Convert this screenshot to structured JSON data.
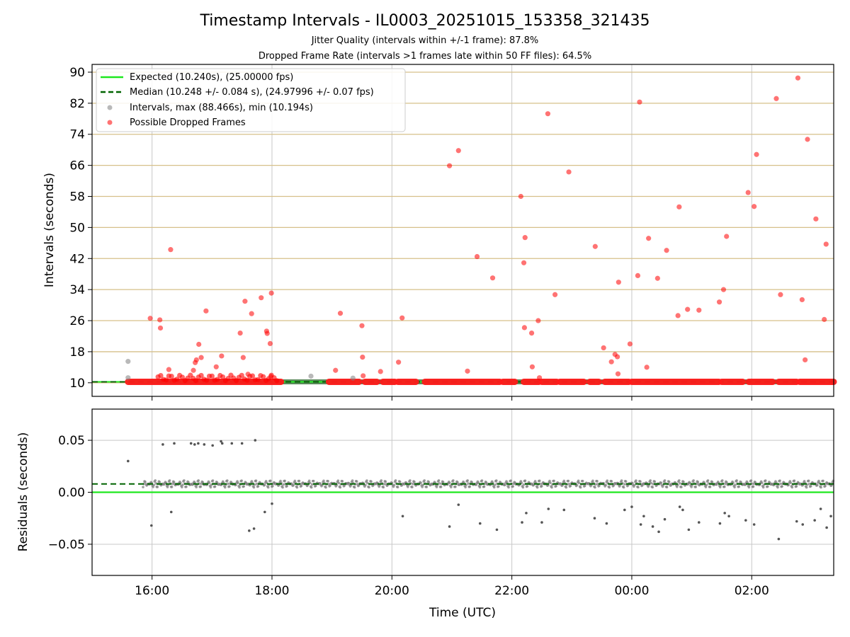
{
  "chart_data": [
    {
      "type": "scatter",
      "title": "Timestamp Intervals - IL0003_20251015_153358_321435",
      "subtitle_lines": [
        "Jitter Quality (intervals within +/-1 frame): 87.8%",
        "Dropped Frame Rate (intervals >1 frames late within 50 FF files): 64.5%"
      ],
      "xlabel": "",
      "ylabel": "Intervals (seconds)",
      "xlim_hours": [
        15.0,
        27.367
      ],
      "ylim": [
        6.5,
        92
      ],
      "yticks": [
        10,
        18,
        26,
        34,
        42,
        50,
        58,
        66,
        74,
        82,
        90
      ],
      "ytick_labels": [
        "10",
        "18",
        "26",
        "34",
        "42",
        "50",
        "58",
        "66",
        "74",
        "82",
        "90"
      ],
      "hlines": [
        10,
        18,
        26,
        34,
        42,
        50,
        58,
        66,
        74,
        82,
        90
      ],
      "expected_value": 10.24,
      "median_value": 10.248,
      "legend_position": "upper-left",
      "legend": [
        {
          "label": "Expected (10.240s), (25.00000 fps)",
          "style": "solid",
          "color": "#1ee81e"
        },
        {
          "label": "Median (10.248 +/- 0.084 s), (24.97996 +/- 0.07 fps)",
          "style": "dashed",
          "color": "#006400"
        },
        {
          "label": "Intervals, max (88.466s), min (10.194s)",
          "style": "marker",
          "color": "#808080"
        },
        {
          "label": "Possible Dropped Frames",
          "style": "marker",
          "color": "#ff0000"
        }
      ],
      "series": [
        {
          "name": "Intervals",
          "color": "#808080",
          "points": [
            [
              15.6,
              15.5
            ],
            [
              15.6,
              11.3
            ],
            [
              18.65,
              11.7
            ],
            [
              19.35,
              11.2
            ]
          ]
        },
        {
          "name": "Possible Dropped Frames",
          "color": "#ff0000",
          "points": [
            [
              15.97,
              26.6
            ],
            [
              16.13,
              26.2
            ],
            [
              16.14,
              24.1
            ],
            [
              16.28,
              13.4
            ],
            [
              16.31,
              44.3
            ],
            [
              16.69,
              13.2
            ],
            [
              16.72,
              15.2
            ],
            [
              16.74,
              15.9
            ],
            [
              16.78,
              19.9
            ],
            [
              16.82,
              16.5
            ],
            [
              16.9,
              28.5
            ],
            [
              17.07,
              14.1
            ],
            [
              17.16,
              16.9
            ],
            [
              17.47,
              22.8
            ],
            [
              17.52,
              16.5
            ],
            [
              17.55,
              31.0
            ],
            [
              17.6,
              12.2
            ],
            [
              17.66,
              27.8
            ],
            [
              17.82,
              31.9
            ],
            [
              17.91,
              23.3
            ],
            [
              17.92,
              22.7
            ],
            [
              17.97,
              20.1
            ],
            [
              17.98,
              11.6
            ],
            [
              17.99,
              33.1
            ],
            [
              19.06,
              13.2
            ],
            [
              19.14,
              27.9
            ],
            [
              19.5,
              24.7
            ],
            [
              19.51,
              16.6
            ],
            [
              19.52,
              11.8
            ],
            [
              19.81,
              12.9
            ],
            [
              20.11,
              15.3
            ],
            [
              20.17,
              26.7
            ],
            [
              20.96,
              65.9
            ],
            [
              21.11,
              69.8
            ],
            [
              21.26,
              13.0
            ],
            [
              21.42,
              42.5
            ],
            [
              21.68,
              37.0
            ],
            [
              22.15,
              58.0
            ],
            [
              22.2,
              40.9
            ],
            [
              22.21,
              24.2
            ],
            [
              22.22,
              47.4
            ],
            [
              22.33,
              22.8
            ],
            [
              22.34,
              14.1
            ],
            [
              22.44,
              26.0
            ],
            [
              22.46,
              11.3
            ],
            [
              22.6,
              79.3
            ],
            [
              22.72,
              32.7
            ],
            [
              22.95,
              64.3
            ],
            [
              23.39,
              45.1
            ],
            [
              23.53,
              19.0
            ],
            [
              23.66,
              15.4
            ],
            [
              23.72,
              17.3
            ],
            [
              23.76,
              16.7
            ],
            [
              23.77,
              12.3
            ],
            [
              23.78,
              35.9
            ],
            [
              23.97,
              20.0
            ],
            [
              24.1,
              37.6
            ],
            [
              24.13,
              82.3
            ],
            [
              24.25,
              14.0
            ],
            [
              24.28,
              47.2
            ],
            [
              24.43,
              36.9
            ],
            [
              24.58,
              44.1
            ],
            [
              24.77,
              27.3
            ],
            [
              24.79,
              55.3
            ],
            [
              24.93,
              28.9
            ],
            [
              25.12,
              28.7
            ],
            [
              25.46,
              30.8
            ],
            [
              25.53,
              34.0
            ],
            [
              25.58,
              47.7
            ],
            [
              25.94,
              59.0
            ],
            [
              26.04,
              55.4
            ],
            [
              26.08,
              68.8
            ],
            [
              26.41,
              83.2
            ],
            [
              26.48,
              32.7
            ],
            [
              26.77,
              88.5
            ],
            [
              26.84,
              31.4
            ],
            [
              26.89,
              15.9
            ],
            [
              26.93,
              72.7
            ],
            [
              27.07,
              52.2
            ],
            [
              27.21,
              26.3
            ],
            [
              27.24,
              45.7
            ]
          ]
        }
      ],
      "dense_band": {
        "value": 10.248,
        "segments_hours": [
          [
            15.6,
            18.15
          ],
          [
            18.95,
            19.45
          ],
          [
            19.55,
            19.75
          ],
          [
            19.85,
            20.05
          ],
          [
            20.1,
            20.4
          ],
          [
            20.55,
            21.8
          ],
          [
            21.85,
            22.05
          ],
          [
            22.2,
            22.45
          ],
          [
            22.5,
            22.75
          ],
          [
            22.8,
            23.2
          ],
          [
            23.3,
            23.45
          ],
          [
            23.55,
            23.95
          ],
          [
            24.0,
            25.45
          ],
          [
            25.5,
            25.85
          ],
          [
            25.95,
            26.35
          ],
          [
            26.45,
            26.75
          ],
          [
            26.8,
            27.367
          ]
        ]
      }
    },
    {
      "type": "scatter",
      "xlabel": "Time (UTC)",
      "ylabel": "Residuals (seconds)",
      "xlim_hours": [
        15.0,
        27.367
      ],
      "ylim": [
        -0.08,
        0.08
      ],
      "yticks": [
        -0.05,
        0.0,
        0.05
      ],
      "ytick_labels": [
        "−0.05",
        "0.00",
        "0.05"
      ],
      "xticks_hours": [
        16,
        18,
        20,
        22,
        24,
        26
      ],
      "xtick_labels": [
        "16:00",
        "18:00",
        "20:00",
        "22:00",
        "00:00",
        "02:00"
      ],
      "zero_line_color": "#1ee81e",
      "median_offset": 0.008,
      "band": {
        "center": 0.008,
        "spread": 0.0035,
        "range_hours": [
          15.6,
          27.367
        ]
      },
      "series": [
        {
          "name": "Residuals",
          "color": "#808080",
          "points": [
            [
              15.6,
              0.03
            ],
            [
              15.99,
              -0.032
            ],
            [
              16.18,
              0.046
            ],
            [
              16.32,
              -0.019
            ],
            [
              16.37,
              0.047
            ],
            [
              16.65,
              0.047
            ],
            [
              16.71,
              0.046
            ],
            [
              16.77,
              0.047
            ],
            [
              16.87,
              0.046
            ],
            [
              17.01,
              0.045
            ],
            [
              17.15,
              0.049
            ],
            [
              17.17,
              0.047
            ],
            [
              17.33,
              0.047
            ],
            [
              17.5,
              0.047
            ],
            [
              17.62,
              -0.037
            ],
            [
              17.7,
              -0.035
            ],
            [
              17.72,
              0.05
            ],
            [
              17.88,
              -0.019
            ],
            [
              18.0,
              -0.011
            ],
            [
              20.18,
              -0.023
            ],
            [
              20.96,
              -0.033
            ],
            [
              21.11,
              -0.012
            ],
            [
              21.47,
              -0.03
            ],
            [
              21.75,
              -0.036
            ],
            [
              22.17,
              -0.029
            ],
            [
              22.24,
              -0.02
            ],
            [
              22.5,
              -0.029
            ],
            [
              22.61,
              -0.016
            ],
            [
              22.87,
              -0.017
            ],
            [
              23.38,
              -0.025
            ],
            [
              23.58,
              -0.03
            ],
            [
              23.88,
              -0.017
            ],
            [
              24.0,
              -0.014
            ],
            [
              24.15,
              -0.031
            ],
            [
              24.2,
              -0.023
            ],
            [
              24.35,
              -0.033
            ],
            [
              24.45,
              -0.038
            ],
            [
              24.55,
              -0.026
            ],
            [
              24.8,
              -0.014
            ],
            [
              24.85,
              -0.017
            ],
            [
              24.95,
              -0.036
            ],
            [
              25.12,
              -0.029
            ],
            [
              25.47,
              -0.03
            ],
            [
              25.55,
              -0.02
            ],
            [
              25.62,
              -0.023
            ],
            [
              25.9,
              -0.027
            ],
            [
              26.04,
              -0.031
            ],
            [
              26.45,
              -0.045
            ],
            [
              26.75,
              -0.028
            ],
            [
              26.85,
              -0.031
            ],
            [
              27.05,
              -0.027
            ],
            [
              27.15,
              -0.016
            ],
            [
              27.25,
              -0.034
            ],
            [
              27.32,
              -0.023
            ]
          ]
        }
      ]
    }
  ]
}
